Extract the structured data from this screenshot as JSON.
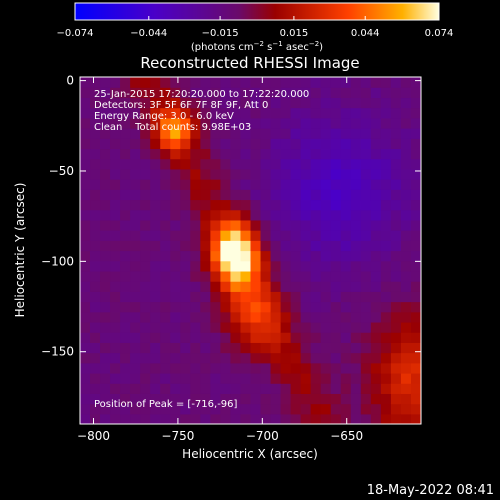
{
  "chart_data": {
    "type": "heatmap",
    "title": "Reconstructed RHESSI Image",
    "xlabel": "Heliocentric X (arcsec)",
    "ylabel": "Heliocentric Y (arcsec)",
    "xlim": [
      -808,
      -606
    ],
    "ylim": [
      -190,
      2
    ],
    "x_ticks": [
      -800,
      -750,
      -700,
      -650
    ],
    "y_ticks": [
      0,
      -50,
      -100,
      -150
    ],
    "x_tick_labels": [
      "−800",
      "−750",
      "−700",
      "−650"
    ],
    "y_tick_labels": [
      "0",
      "−50",
      "−100",
      "−150"
    ],
    "colorbar": {
      "range": [
        -0.074,
        0.074
      ],
      "ticks": [
        -0.074,
        -0.044,
        -0.015,
        0.015,
        0.044,
        0.074
      ],
      "tick_labels": [
        "−0.074",
        "−0.044",
        "−0.015",
        "0.015",
        "0.044",
        "0.074"
      ],
      "unit_prefix": "(photons cm",
      "unit_exp1": "−2",
      "unit_mid": " s",
      "unit_exp2": "−1",
      "unit_mid2": " asec",
      "unit_exp3": "−2",
      "unit_suffix": ")"
    },
    "info_lines": [
      "25-Jan-2015 17:20:20.000 to 17:22:20.000",
      "Detectors: 3F 5F 6F 7F 8F 9F, Att 0",
      "Energy Range: 3.0 - 6.0 keV",
      "Clean    Total counts: 9.98E+03"
    ],
    "peak_label": "Position of Peak = [-716,-96]",
    "peak": [
      -716,
      -96
    ],
    "timestamp": "18-May-2022 08:41",
    "sources": [
      {
        "x": -716,
        "y": -96,
        "sx": 10,
        "sy": 13,
        "a": 1.0
      },
      {
        "x": -752,
        "y": -27,
        "sx": 8,
        "sy": 8,
        "a": 0.62
      },
      {
        "x": -705,
        "y": -130,
        "sx": 12,
        "sy": 14,
        "a": 0.38
      },
      {
        "x": -610,
        "y": -165,
        "sx": 18,
        "sy": 25,
        "a": 0.45
      }
    ]
  }
}
